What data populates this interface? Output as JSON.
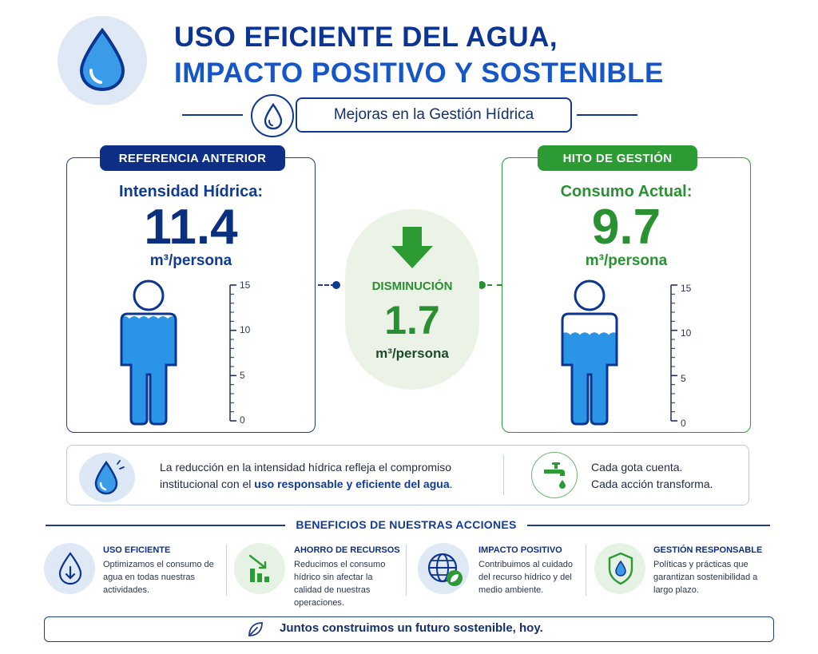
{
  "header": {
    "title_line1": "USO EFICIENTE DEL AGUA,",
    "title_line2": "IMPACTO POSITIVO Y SOSTENIBLE",
    "subtitle": "Mejoras en la Gestión Hídrica",
    "logo_icon": "water-drop-icon"
  },
  "before": {
    "tag": "REFERENCIA ANTERIOR",
    "label": "Intensidad Hídrica:",
    "value": "11.4",
    "unit": "m³/persona",
    "level": 11.4,
    "color": "#0e2f86"
  },
  "after": {
    "tag": "HITO DE GESTIÓN",
    "label": "Consumo Actual:",
    "value": "9.7",
    "unit": "m³/persona",
    "level": 9.7,
    "color": "#2c9b34"
  },
  "scale": {
    "ticks": [
      "15",
      "10",
      "5",
      "0"
    ],
    "max": 15
  },
  "reduction": {
    "label": "DISMINUCIÓN",
    "value": "1.7",
    "unit": "m³/persona",
    "icon": "arrow-down-icon"
  },
  "info": {
    "text_before": "La reducción en la intensidad hídrica refleja el compromiso institucional con el ",
    "text_highlight": "uso responsable y eficiente del agua",
    "text_after": ".",
    "motto_line1": "Cada gota cuenta.",
    "motto_line2": "Cada acción transforma."
  },
  "benefits": {
    "title": "BENEFICIOS DE NUESTRAS ACCIONES",
    "items": [
      {
        "title": "USO EFICIENTE",
        "desc": "Optimizamos el consumo de agua en todas nuestras actividades.",
        "icon": "drop-down-arrow-icon"
      },
      {
        "title": "AHORRO DE RECURSOS",
        "desc": "Reducimos el consumo hídrico sin afectar la calidad de nuestras operaciones.",
        "icon": "bar-chart-down-icon"
      },
      {
        "title": "IMPACTO POSITIVO",
        "desc": "Contribuimos al cuidado del recurso hídrico y del medio ambiente.",
        "icon": "globe-leaf-icon"
      },
      {
        "title": "GESTIÓN RESPONSABLE",
        "desc": "Políticas y prácticas que garantizan sostenibilidad a largo plazo.",
        "icon": "shield-drop-icon"
      }
    ]
  },
  "footer": {
    "text": "Juntos construimos un futuro sostenible, hoy.",
    "icon": "leaf-icon"
  }
}
